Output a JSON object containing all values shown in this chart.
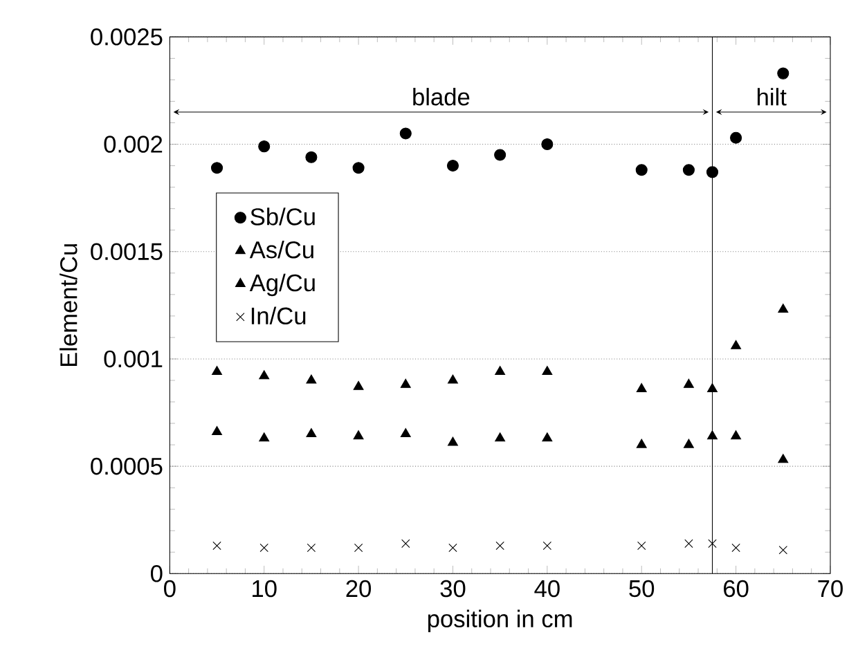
{
  "chart_data": {
    "type": "scatter",
    "xlabel": "position in cm",
    "ylabel": "Element/Cu",
    "x": [
      5,
      10,
      15,
      20,
      25,
      30,
      35,
      40,
      50,
      55,
      57.5,
      60,
      65
    ],
    "series": [
      {
        "name": "Sb/Cu",
        "color": "#000000",
        "marker": "circle",
        "values": [
          0.00189,
          0.00199,
          0.00194,
          0.00189,
          0.00205,
          0.0019,
          0.00195,
          0.002,
          0.00188,
          0.00188,
          0.00187,
          0.00203,
          0.00233
        ]
      },
      {
        "name": "As/Cu",
        "color": "#000000",
        "marker": "triangle",
        "values": [
          0.00094,
          0.00092,
          0.0009,
          0.00087,
          0.00088,
          0.0009,
          0.00094,
          0.00094,
          0.00086,
          0.00088,
          0.00086,
          0.00106,
          0.00123
        ]
      },
      {
        "name": "Ag/Cu",
        "color": "#000000",
        "marker": "triangle",
        "values": [
          0.00066,
          0.00063,
          0.00065,
          0.00064,
          0.00065,
          0.00061,
          0.00063,
          0.00063,
          0.0006,
          0.0006,
          0.00064,
          0.00064,
          0.00053
        ]
      },
      {
        "name": "In/Cu",
        "color": "#000000",
        "marker": "cross",
        "values": [
          0.00013,
          0.00012,
          0.00012,
          0.00012,
          0.00014,
          0.00012,
          0.00013,
          0.00013,
          0.00013,
          0.00014,
          0.00014,
          0.00012,
          0.00011
        ]
      }
    ],
    "xlim": [
      0,
      70
    ],
    "xticks": [
      0,
      10,
      20,
      30,
      40,
      50,
      60,
      70
    ],
    "ylim": [
      0,
      0.0025
    ],
    "yticks": [
      0,
      0.0005,
      0.001,
      0.0015,
      0.002,
      0.0025
    ],
    "grid": "y",
    "legend": "top left",
    "ref_lines": [
      {
        "axis": "x",
        "value": 57.5,
        "color": "#000000",
        "line_style": "solid"
      }
    ],
    "annotations": [
      "blade",
      "hilt"
    ]
  }
}
